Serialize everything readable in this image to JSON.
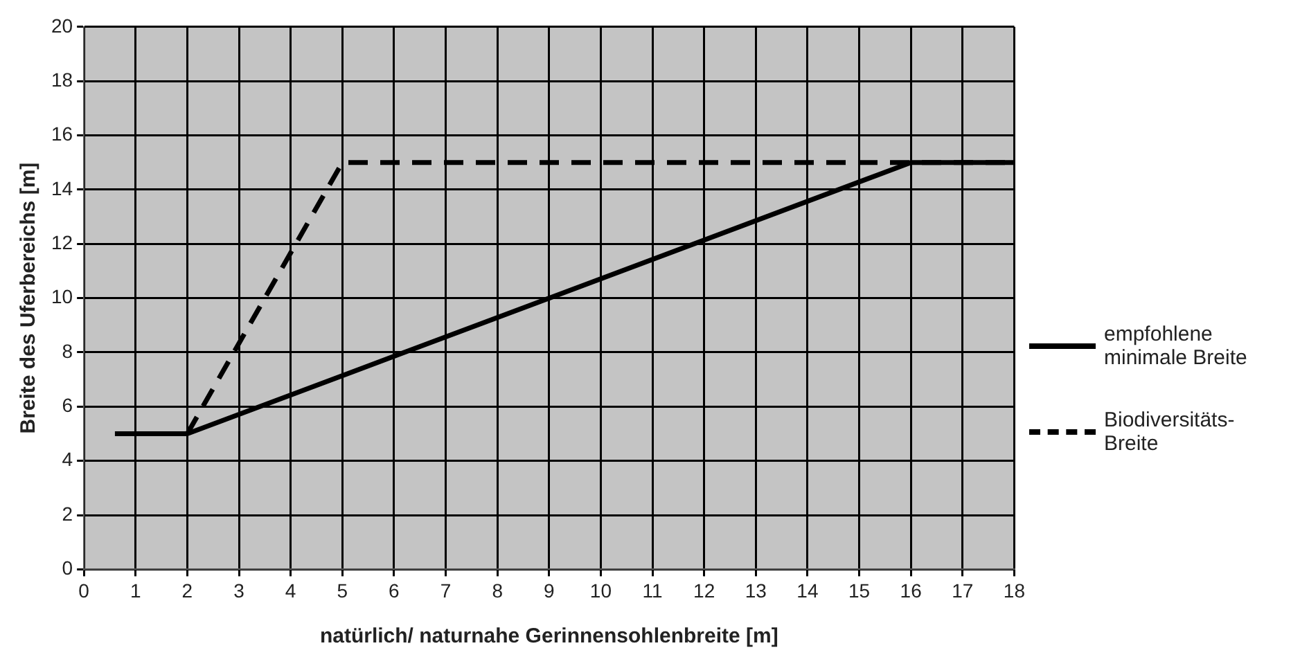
{
  "chart_data": {
    "type": "line",
    "xlabel": "natürlich/ naturnahe Gerinnensohlenbreite [m]",
    "ylabel": "Breite des Uferbereichs [m]",
    "series": [
      {
        "name": "empfohlene minimale Breite",
        "color": "#000000",
        "line_style": "solid",
        "x": [
          0.6,
          2,
          16,
          18
        ],
        "values": [
          5,
          5,
          15,
          15
        ]
      },
      {
        "name": "Biodiversitäts-Breite",
        "color": "#000000",
        "line_style": "dashed",
        "x": [
          2,
          5,
          18
        ],
        "values": [
          5,
          15,
          15
        ]
      }
    ],
    "xlim": [
      0,
      18
    ],
    "xticks": [
      0,
      1,
      2,
      3,
      4,
      5,
      6,
      7,
      8,
      9,
      10,
      11,
      12,
      13,
      14,
      15,
      16,
      17,
      18
    ],
    "ylim": [
      0,
      20
    ],
    "yticks": [
      0,
      2,
      4,
      6,
      8,
      10,
      12,
      14,
      16,
      18,
      20
    ],
    "grid": true,
    "legend": "right",
    "marker": "none"
  }
}
